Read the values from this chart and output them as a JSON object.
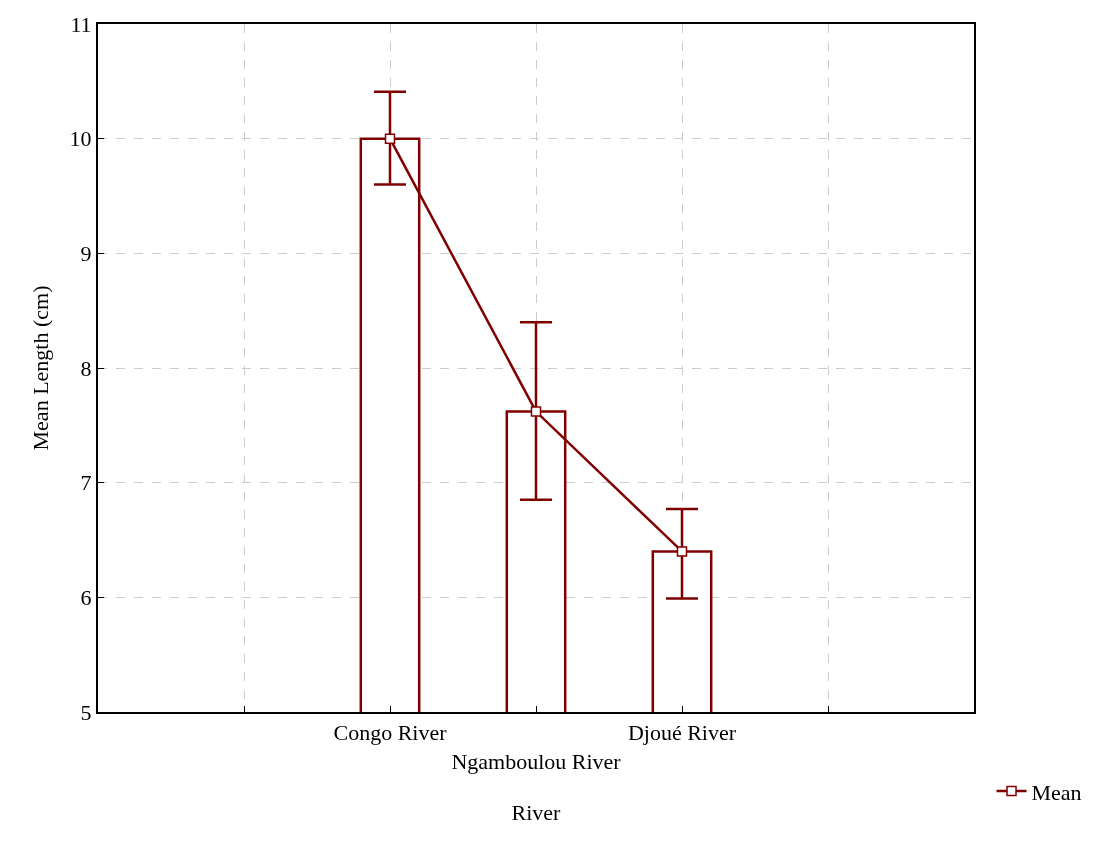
{
  "chart_data": {
    "type": "bar",
    "xlabel": "River",
    "ylabel": "Mean Length (cm)",
    "categories": [
      null,
      "Congo River",
      "Ngamboulou River",
      "Djoué River",
      null
    ],
    "series": [
      {
        "color": "#800000",
        "values": [
          null,
          10.0,
          7.62,
          6.4,
          null
        ]
      },
      {
        "type": "line",
        "name": "Mean",
        "color": "#800000",
        "marker": "square",
        "values": [
          null,
          10.0,
          7.62,
          6.4,
          null
        ],
        "errors": [
          null,
          [
            9.6,
            10.41
          ],
          [
            6.85,
            8.4
          ],
          [
            5.99,
            6.77
          ],
          null
        ]
      }
    ],
    "ylim": [
      5,
      11
    ],
    "yticks": [
      5,
      6,
      7,
      8,
      9,
      10,
      11
    ],
    "grid": true,
    "legend": "bottom right"
  }
}
